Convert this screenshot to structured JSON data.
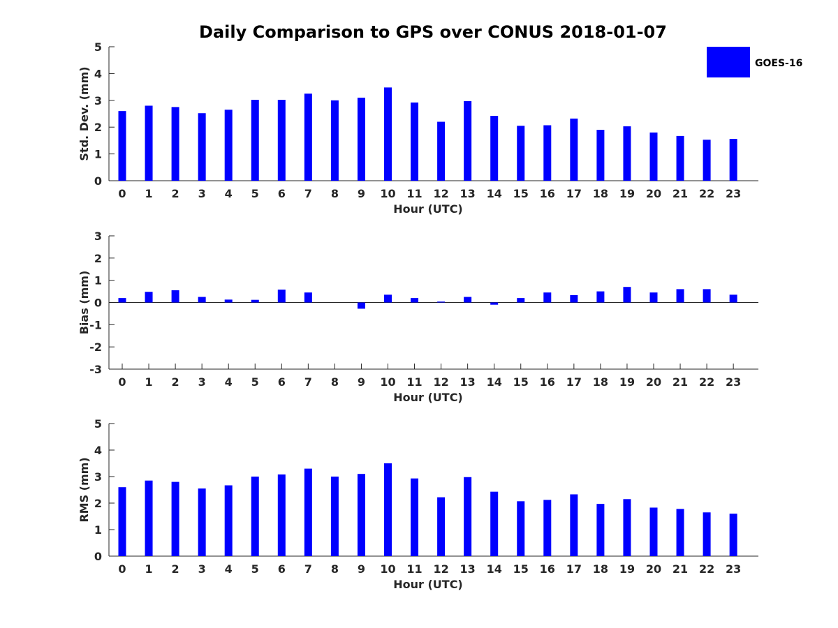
{
  "title": "Daily Comparison to GPS over CONUS 2018-01-07",
  "legend": {
    "label": "GOES-16",
    "color": "#0000ff",
    "position": "top-right"
  },
  "chart_data": [
    {
      "type": "bar",
      "name": "std-dev",
      "ylabel": "Std. Dev. (mm)",
      "xlabel": "Hour (UTC)",
      "categories": [
        "0",
        "1",
        "2",
        "3",
        "4",
        "5",
        "6",
        "7",
        "8",
        "9",
        "10",
        "11",
        "12",
        "13",
        "14",
        "15",
        "16",
        "17",
        "18",
        "19",
        "20",
        "21",
        "22",
        "23"
      ],
      "ylim": [
        0,
        5
      ],
      "yticks": [
        "0",
        "1",
        "2",
        "3",
        "4",
        "5"
      ],
      "series": [
        {
          "name": "GOES-16",
          "color": "#0000ff",
          "values": [
            2.6,
            2.8,
            2.75,
            2.52,
            2.65,
            3.02,
            3.02,
            3.25,
            3.0,
            3.1,
            3.48,
            2.92,
            2.2,
            2.97,
            2.42,
            2.05,
            2.07,
            2.32,
            1.9,
            2.03,
            1.8,
            1.67,
            1.53,
            1.56
          ]
        }
      ]
    },
    {
      "type": "bar",
      "name": "bias",
      "ylabel": "Bias (mm)",
      "xlabel": "Hour (UTC)",
      "categories": [
        "0",
        "1",
        "2",
        "3",
        "4",
        "5",
        "6",
        "7",
        "8",
        "9",
        "10",
        "11",
        "12",
        "13",
        "14",
        "15",
        "16",
        "17",
        "18",
        "19",
        "20",
        "21",
        "22",
        "23"
      ],
      "ylim": [
        -3,
        3
      ],
      "yticks": [
        "-3",
        "-2",
        "-1",
        "0",
        "1",
        "2",
        "3"
      ],
      "series": [
        {
          "name": "GOES-16",
          "color": "#0000ff",
          "values": [
            0.2,
            0.48,
            0.55,
            0.25,
            0.13,
            0.12,
            0.58,
            0.45,
            0.0,
            -0.28,
            0.35,
            0.2,
            0.04,
            0.25,
            -0.1,
            0.2,
            0.45,
            0.33,
            0.5,
            0.7,
            0.45,
            0.6,
            0.6,
            0.35
          ]
        }
      ]
    },
    {
      "type": "bar",
      "name": "rms",
      "ylabel": "RMS (mm)",
      "xlabel": "Hour (UTC)",
      "categories": [
        "0",
        "1",
        "2",
        "3",
        "4",
        "5",
        "6",
        "7",
        "8",
        "9",
        "10",
        "11",
        "12",
        "13",
        "14",
        "15",
        "16",
        "17",
        "18",
        "19",
        "20",
        "21",
        "22",
        "23"
      ],
      "ylim": [
        0,
        5
      ],
      "yticks": [
        "0",
        "1",
        "2",
        "3",
        "4",
        "5"
      ],
      "series": [
        {
          "name": "GOES-16",
          "color": "#0000ff",
          "values": [
            2.6,
            2.85,
            2.8,
            2.55,
            2.67,
            3.0,
            3.08,
            3.3,
            3.0,
            3.1,
            3.5,
            2.93,
            2.22,
            2.98,
            2.43,
            2.07,
            2.12,
            2.33,
            1.97,
            2.15,
            1.83,
            1.78,
            1.65,
            1.6
          ]
        }
      ]
    }
  ]
}
